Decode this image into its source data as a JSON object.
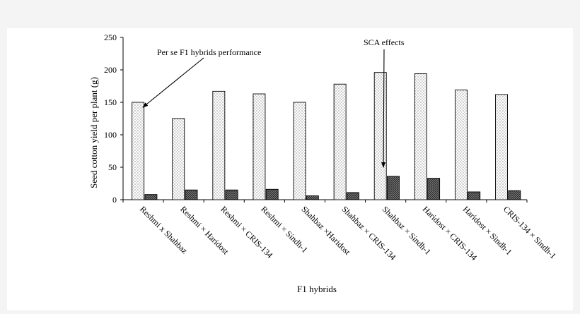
{
  "chart_data": {
    "type": "bar",
    "title": "",
    "xlabel": "F1 hybrids",
    "ylabel": "Seed cotton yield per plant (g)",
    "ylim": [
      0,
      250
    ],
    "yticks": [
      0,
      50,
      100,
      150,
      200,
      250
    ],
    "grid": false,
    "legend": "none",
    "categories": [
      "Reshmi x Shahbaz",
      "Reshmi × Haridost",
      "Reshmi  × CRIS-134",
      "Reshmi  × Sindh-1",
      "Shahbaz ×Haridost",
      "Shahbaz  × CRIS-134",
      "Shahbaz  × Sindh-1",
      "Haridost  × CRIS-134",
      "Haridost  × Sindh-1",
      "CRIS-134  × Sindh-1"
    ],
    "series": [
      {
        "values": [
          150,
          125,
          167,
          163,
          150,
          178,
          196,
          194,
          169,
          162
        ],
        "pattern": "dots-light"
      },
      {
        "values": [
          8,
          15,
          15,
          16,
          6,
          11,
          36,
          33,
          12,
          14
        ],
        "pattern": "crosshatch-dark"
      }
    ],
    "annotations": [
      {
        "text": "Per se F1 hybrids performance",
        "points_to_category": 0,
        "points_to_series": 0
      },
      {
        "text": "SCA effects",
        "points_to_category": 6,
        "points_to_series": 1
      }
    ]
  }
}
